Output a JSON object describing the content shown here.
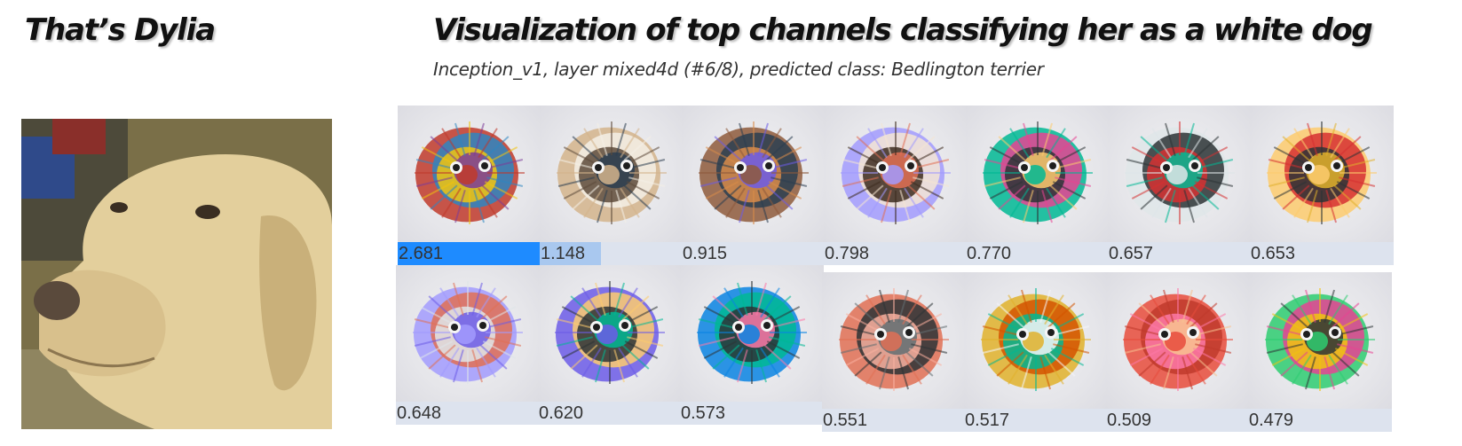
{
  "left_title": "That’s Dylia",
  "right_title": "Visualization of top channels classifying her as a white dog",
  "subtitle": "Inception_v1, layer mixed4d (#6/8), predicted class: Bedlington terrier",
  "channels": [
    {
      "score": "2.681",
      "value": 2.681,
      "palette": [
        "#c0392b",
        "#2e86c1",
        "#f1c40f",
        "#7d3c98"
      ]
    },
    {
      "score": "1.148",
      "value": 1.148,
      "palette": [
        "#d4b48c",
        "#f5f0e6",
        "#5d4a3a",
        "#2c3e50"
      ]
    },
    {
      "score": "0.915",
      "value": 0.915,
      "palette": [
        "#8e5a3c",
        "#2c3e50",
        "#d98c4a",
        "#6c5ce7"
      ]
    },
    {
      "score": "0.798",
      "value": 0.798,
      "palette": [
        "#a29bfe",
        "#f5e6d3",
        "#3d2b1f",
        "#e17055"
      ]
    },
    {
      "score": "0.770",
      "value": 0.77,
      "palette": [
        "#00b894",
        "#e84393",
        "#2d3436",
        "#fdcb6e"
      ]
    },
    {
      "score": "0.657",
      "value": 0.657,
      "palette": [
        "#dfe6e9",
        "#2d3436",
        "#d63031",
        "#00b894"
      ]
    },
    {
      "score": "0.653",
      "value": 0.653,
      "palette": [
        "#fdcb6e",
        "#d63031",
        "#2d3436",
        "#e1b12c"
      ]
    },
    {
      "score": "0.648",
      "value": 0.648,
      "palette": [
        "#a29bfe",
        "#e17055",
        "#dfe6e9",
        "#6c5ce7"
      ]
    },
    {
      "score": "0.620",
      "value": 0.62,
      "palette": [
        "#6c5ce7",
        "#fdcb6e",
        "#2d3436",
        "#00b894"
      ]
    },
    {
      "score": "0.573",
      "value": 0.573,
      "palette": [
        "#0984e3",
        "#00b894",
        "#2d3436",
        "#fd79a8"
      ]
    },
    {
      "score": "0.551",
      "value": 0.551,
      "palette": [
        "#e17055",
        "#2d3436",
        "#fab1a0",
        "#636e72"
      ]
    },
    {
      "score": "0.517",
      "value": 0.517,
      "palette": [
        "#e1b12c",
        "#d35400",
        "#00b894",
        "#f5f6fa"
      ]
    },
    {
      "score": "0.509",
      "value": 0.509,
      "palette": [
        "#e74c3c",
        "#c0392b",
        "#fd79a8",
        "#f8c291"
      ]
    },
    {
      "score": "0.479",
      "value": 0.479,
      "palette": [
        "#2ecc71",
        "#e84393",
        "#f1c40f",
        "#2d3436"
      ]
    }
  ]
}
